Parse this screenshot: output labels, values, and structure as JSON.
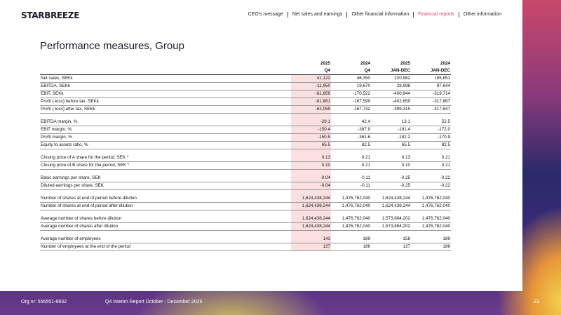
{
  "header": {
    "logo": "STARBREEZE",
    "nav": [
      "CEO's message",
      "Net sales and earnings",
      "Other financial information",
      "Financial reports",
      "Other information"
    ],
    "active_nav": 3
  },
  "title": "Performance measures, Group",
  "table": {
    "years": [
      "2025",
      "2024",
      "2025",
      "2024"
    ],
    "periods": [
      "Q4",
      "Q4",
      "JAN-DEC",
      "JAN-DEC"
    ],
    "groups": [
      [
        [
          "Net sales, SEKk",
          "41,122",
          "46,350",
          "220,982",
          "185,851"
        ],
        [
          "EBITDA, SEKk",
          "-11,950",
          "19,670",
          "28,998",
          "97,644"
        ],
        [
          "EBIT, SEKk",
          "-61,859",
          "-170,522",
          "-400,944",
          "-319,714"
        ],
        [
          "Profit (-loss) before tax, SEKk",
          "-61,881",
          "-167,599",
          "-402,659",
          "-317,667"
        ],
        [
          "Profit (-loss) after tax, SEKk",
          "-62,055",
          "-167,732",
          "-399,315",
          "-317,847"
        ]
      ],
      [
        [
          "EBITDA margin, %",
          "-29.1",
          "42.4",
          "13.1",
          "52.5"
        ],
        [
          "EBIT margin, %",
          "-150.4",
          "-367.9",
          "-181.4",
          "-172.0"
        ],
        [
          "Profit margin, %",
          "-150.5",
          "-361.6",
          "-182.2",
          "-170.9"
        ],
        [
          "Equity to assets ratio, %",
          "65.5",
          "82.5",
          "65.5",
          "82.5"
        ]
      ],
      [
        [
          "Closing price of A share for the period, SEK *",
          "0.13",
          "0.21",
          "0.13",
          "0.21"
        ],
        [
          "Closing price of B share for the period, SEK *",
          "0.10",
          "0.21",
          "0.10",
          "0.21"
        ]
      ],
      [
        [
          "Basic earnings per share, SEK",
          "-0.04",
          "-0.11",
          "-0.25",
          "-0.22"
        ],
        [
          "Diluted earnings per share, SEK",
          "-0.04",
          "-0.11",
          "-0.25",
          "-0.22"
        ]
      ],
      [
        [
          "Number of shares at end of period before dilution",
          "1,624,438,244",
          "1,476,762,040",
          "1,624,438,244",
          "1,476,762,040"
        ],
        [
          "Number of shares at end of period after dilution",
          "1,624,438,244",
          "1,476,762,040",
          "1,624,438,244",
          "1,476,762,040"
        ]
      ],
      [
        [
          "Average number of shares before dilution",
          "1,624,438,244",
          "1,476,762,040",
          "1,573,864,202",
          "1,476,762,040"
        ],
        [
          "Average number of shares after dilution",
          "1,624,438,244",
          "1,476,762,040",
          "1,573,864,202",
          "1,476,762,040"
        ]
      ],
      [
        [
          "Average number of employees",
          "143",
          "189",
          "158",
          "189"
        ],
        [
          "Number of employees at the end of the period",
          "137",
          "186",
          "137",
          "186"
        ]
      ]
    ]
  },
  "footer": {
    "org": "Org.nr: 556551-8932",
    "report": "Q4 Interim Report October - December 2025",
    "page": "23"
  }
}
